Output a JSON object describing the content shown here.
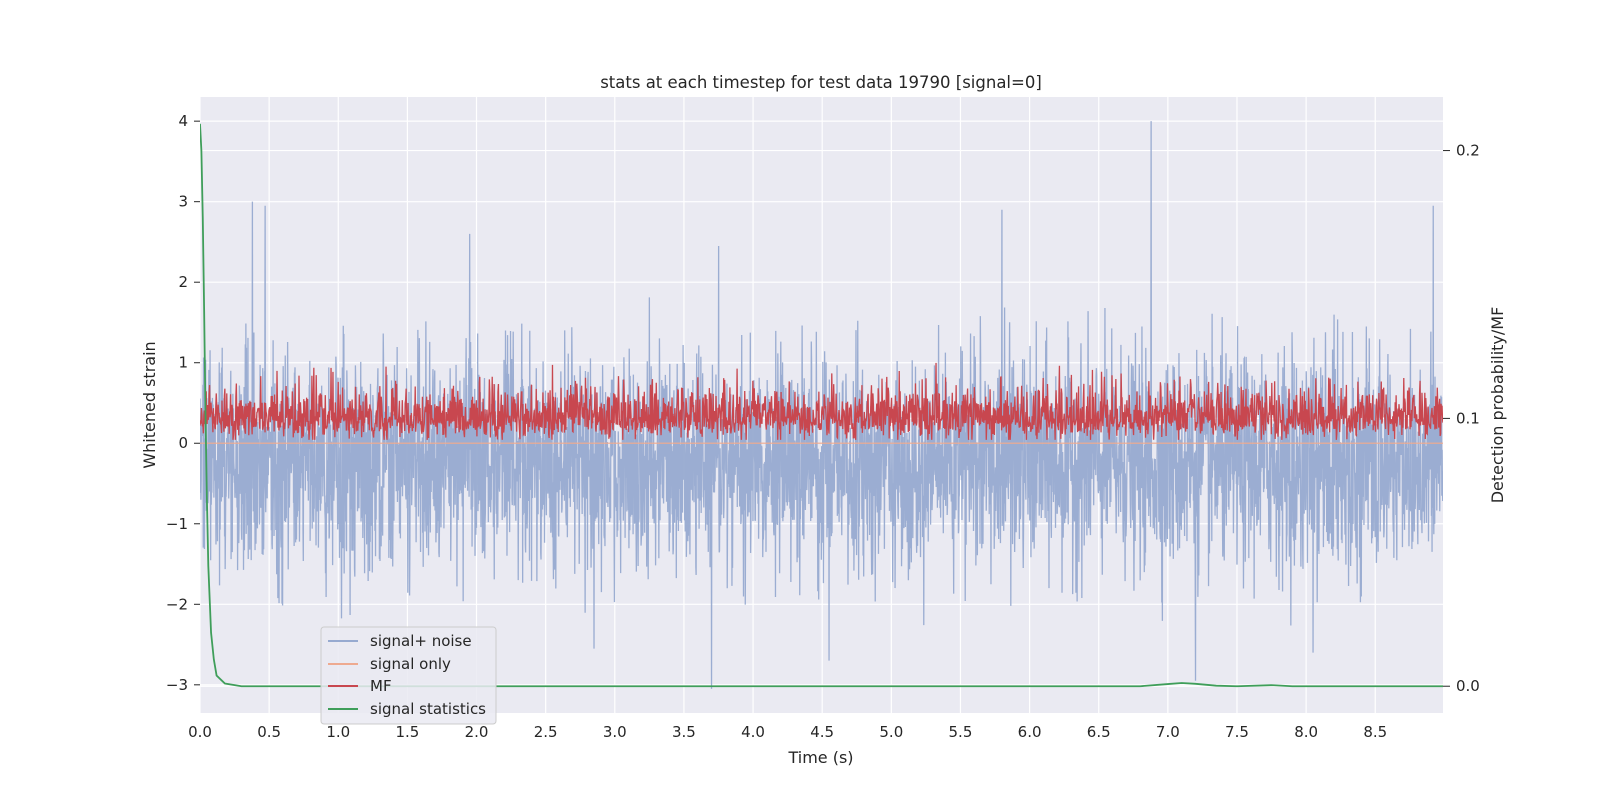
{
  "chart_data": {
    "type": "line",
    "title": "stats at each timestep for test data 19790 [signal=0]",
    "xlabel": "Time (s)",
    "ylabel_left": "Whitened strain",
    "ylabel_right": "Detection probability/MF",
    "xlim": [
      0,
      8.99
    ],
    "ylim_left": [
      -3.35,
      4.3
    ],
    "ylim_right": [
      -0.01,
      0.22
    ],
    "x_ticks": [
      0.0,
      0.5,
      1.0,
      1.5,
      2.0,
      2.5,
      3.0,
      3.5,
      4.0,
      4.5,
      5.0,
      5.5,
      6.0,
      6.5,
      7.0,
      7.5,
      8.0,
      8.5
    ],
    "x_tick_labels": [
      "0.0",
      "0.5",
      "1.0",
      "1.5",
      "2.0",
      "2.5",
      "3.0",
      "3.5",
      "4.0",
      "4.5",
      "5.0",
      "5.5",
      "6.0",
      "6.5",
      "7.0",
      "7.5",
      "8.0",
      "8.5"
    ],
    "y_left_ticks": [
      4,
      3,
      2,
      1,
      0,
      -1,
      -2,
      -3
    ],
    "y_left_tick_labels": [
      "4",
      "3",
      "2",
      "1",
      "0",
      "−1",
      "−2",
      "−3"
    ],
    "y_right_ticks": [
      0.2,
      0.1,
      0.0
    ],
    "y_right_tick_labels": [
      "0.2",
      "0.1",
      "0.0"
    ],
    "grid": true,
    "legend_position": "lower-left",
    "colors": {
      "signal_noise": "#97aad0",
      "signal_only": "#eeaa90",
      "mf": "#c8474f",
      "signal_statistics": "#3f9e5a",
      "plot_bg": "#eaeaf2",
      "grid": "#ffffff"
    },
    "series": [
      {
        "name": "signal+ noise",
        "axis": "left",
        "kind": "dense noise",
        "mean": -0.25,
        "std": 0.65,
        "annotated_peaks": [
          {
            "x": 0.38,
            "y": 3.0
          },
          {
            "x": 0.47,
            "y": 2.95
          },
          {
            "x": 1.95,
            "y": 2.6
          },
          {
            "x": 3.75,
            "y": 2.45
          },
          {
            "x": 5.8,
            "y": 2.9
          },
          {
            "x": 6.88,
            "y": 4.0
          },
          {
            "x": 8.92,
            "y": 2.95
          },
          {
            "x": 3.7,
            "y": -3.05
          },
          {
            "x": 7.2,
            "y": -2.95
          },
          {
            "x": 4.55,
            "y": -2.7
          },
          {
            "x": 8.05,
            "y": -2.6
          },
          {
            "x": 2.85,
            "y": -2.55
          }
        ]
      },
      {
        "name": "signal only",
        "axis": "left",
        "constant": 0.0
      },
      {
        "name": "MF",
        "axis": "right",
        "kind": "dense noise",
        "baseline": 0.1,
        "min": 0.092,
        "max": 0.125
      },
      {
        "name": "signal statistics",
        "axis": "right",
        "x": [
          0.0,
          0.01,
          0.02,
          0.03,
          0.04,
          0.05,
          0.06,
          0.08,
          0.1,
          0.12,
          0.18,
          0.3,
          1.0,
          3.0,
          5.0,
          6.8,
          7.0,
          7.1,
          7.2,
          7.35,
          7.5,
          7.75,
          7.9,
          8.5,
          8.99
        ],
        "y": [
          0.21,
          0.2,
          0.175,
          0.14,
          0.1,
          0.07,
          0.045,
          0.02,
          0.01,
          0.004,
          0.001,
          0.0,
          0.0,
          0.0,
          0.0,
          0.0,
          0.0008,
          0.0012,
          0.0009,
          0.0002,
          0.0,
          0.0004,
          0.0,
          0.0,
          0.0
        ]
      }
    ]
  }
}
